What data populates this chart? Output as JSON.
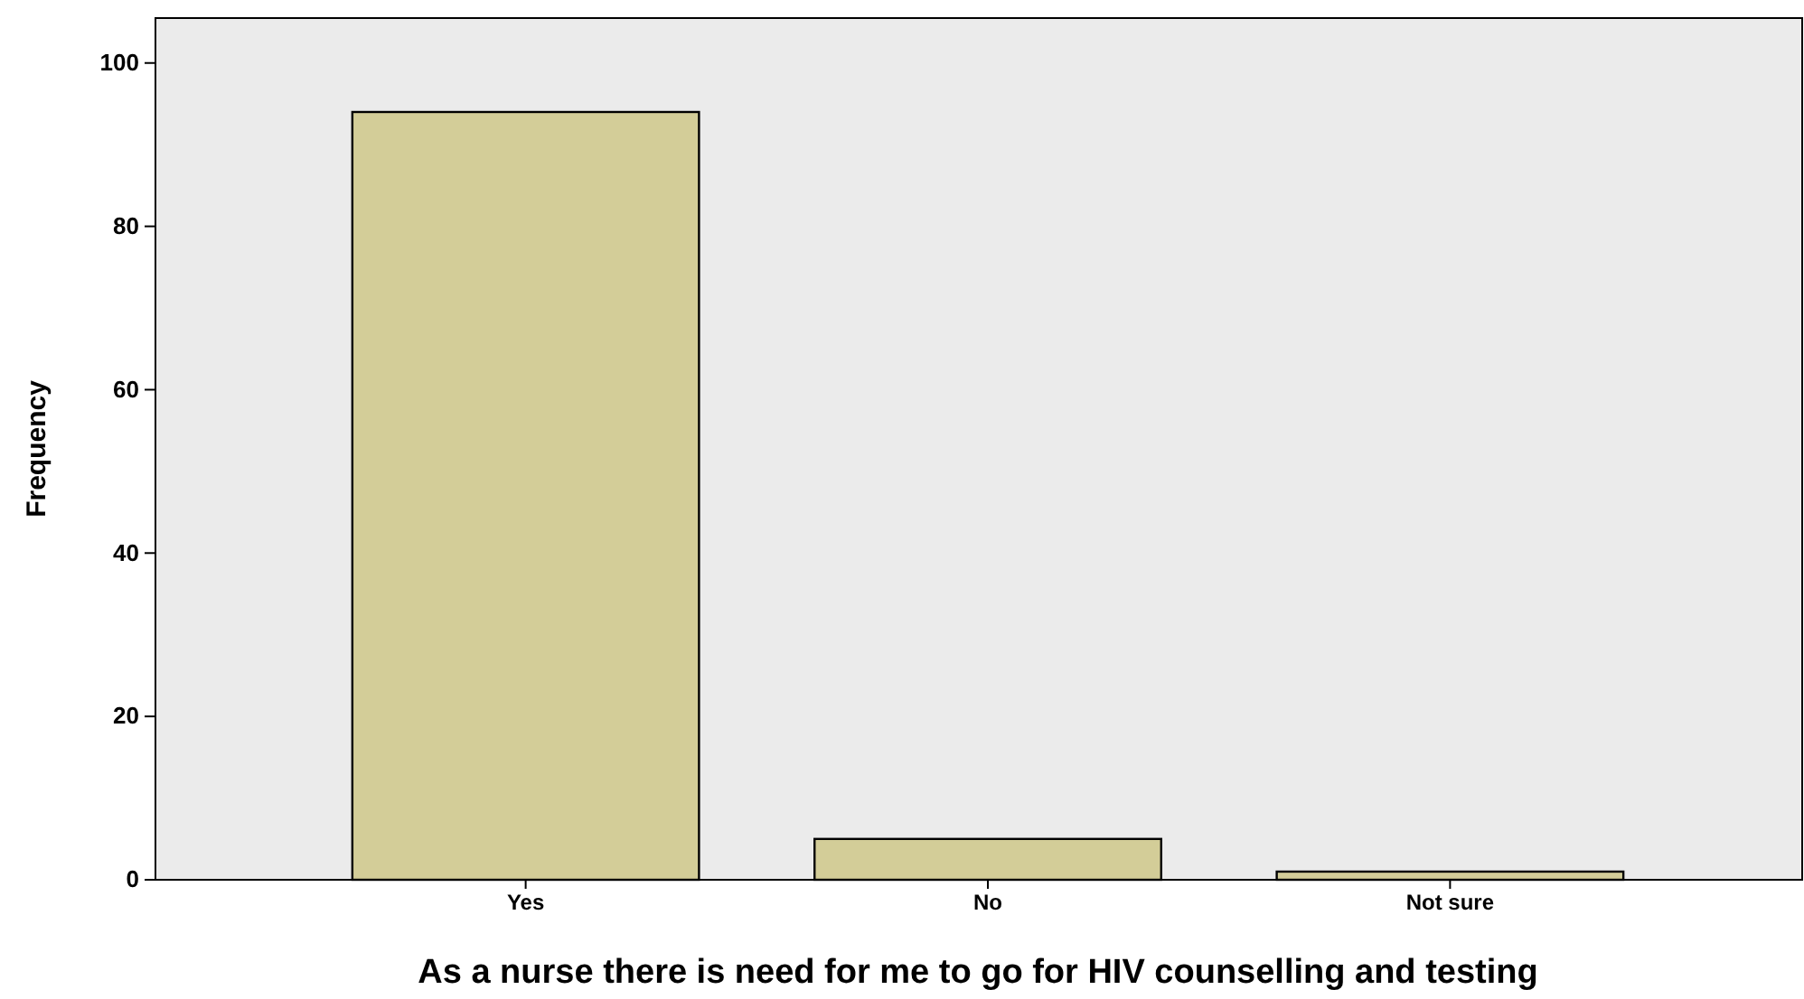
{
  "chart_data": {
    "type": "bar",
    "xlabel": "As a nurse there is need for me to go for HIV counselling and testing",
    "ylabel": "Frequency",
    "categories": [
      "Yes",
      "No",
      "Not sure"
    ],
    "values": [
      94,
      5,
      1
    ],
    "color": "#d3cd98",
    "ylim": [
      0,
      105.5
    ],
    "yticks": [
      0,
      20,
      40,
      60,
      80,
      100
    ],
    "grid": false
  }
}
